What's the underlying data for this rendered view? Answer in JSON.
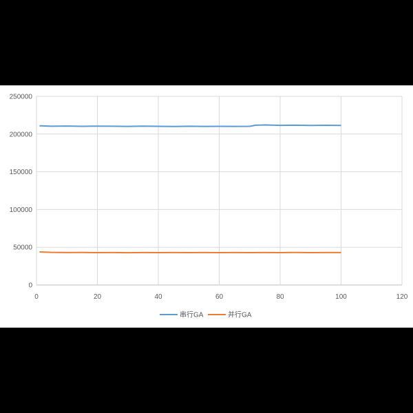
{
  "chart_data": {
    "type": "line",
    "title": "",
    "xlabel": "",
    "ylabel": "",
    "xlim": [
      0,
      120
    ],
    "ylim": [
      0,
      250000
    ],
    "x_ticks": [
      "0",
      "20",
      "40",
      "60",
      "80",
      "100",
      "120"
    ],
    "y_ticks": [
      "0",
      "50000",
      "100000",
      "150000",
      "200000",
      "250000"
    ],
    "grid": true,
    "legend_position": "bottom",
    "series": [
      {
        "name": "串行GA",
        "color": "#5b9bd5",
        "points": [
          [
            1,
            211000
          ],
          [
            5,
            210400
          ],
          [
            10,
            210600
          ],
          [
            15,
            210300
          ],
          [
            20,
            210500
          ],
          [
            25,
            210400
          ],
          [
            30,
            210200
          ],
          [
            35,
            210500
          ],
          [
            40,
            210300
          ],
          [
            45,
            210100
          ],
          [
            50,
            210400
          ],
          [
            55,
            210200
          ],
          [
            60,
            210300
          ],
          [
            65,
            210200
          ],
          [
            70,
            210300
          ],
          [
            72,
            211800
          ],
          [
            75,
            212100
          ],
          [
            80,
            211600
          ],
          [
            85,
            211800
          ],
          [
            90,
            211500
          ],
          [
            95,
            211700
          ],
          [
            100,
            211400
          ]
        ]
      },
      {
        "name": "并行GA",
        "color": "#ed7d31",
        "points": [
          [
            1,
            43800
          ],
          [
            5,
            43200
          ],
          [
            10,
            43000
          ],
          [
            15,
            43100
          ],
          [
            20,
            42900
          ],
          [
            25,
            43000
          ],
          [
            30,
            42800
          ],
          [
            35,
            43000
          ],
          [
            40,
            42900
          ],
          [
            45,
            43000
          ],
          [
            50,
            42900
          ],
          [
            55,
            43000
          ],
          [
            60,
            42900
          ],
          [
            65,
            43000
          ],
          [
            70,
            42900
          ],
          [
            75,
            43000
          ],
          [
            80,
            42900
          ],
          [
            85,
            43100
          ],
          [
            90,
            42900
          ],
          [
            95,
            43000
          ],
          [
            100,
            43000
          ]
        ]
      }
    ]
  }
}
